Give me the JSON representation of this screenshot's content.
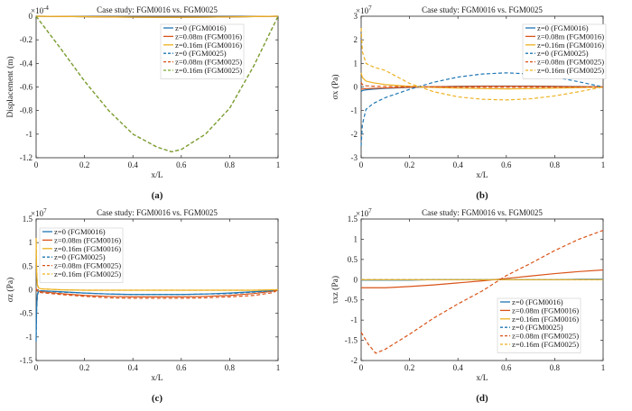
{
  "figure": {
    "panels": [
      {
        "id": "a",
        "label": "(a)",
        "title": "Case study: FGM0016 vs. FGM0025",
        "xlabel": "x/L",
        "ylabel": "Displacement (m)",
        "exponent": "×10",
        "exponent_power": "-4"
      },
      {
        "id": "b",
        "label": "(b)",
        "title": "Case study: FGM0016 vs. FGM0025",
        "xlabel": "x/L",
        "ylabel": "σx (Pa)",
        "exponent": "×10",
        "exponent_power": "7"
      },
      {
        "id": "c",
        "label": "(c)",
        "title": "Case study: FGM0016 vs. FGM0025",
        "xlabel": "x/L",
        "ylabel": "σz (Pa)",
        "exponent": "×10",
        "exponent_power": "7"
      },
      {
        "id": "d",
        "label": "(d)",
        "title": "Case study: FGM0016 vs. FGM0025",
        "xlabel": "x/L",
        "ylabel": "τxz (Pa)",
        "exponent": "×10",
        "exponent_power": "7"
      }
    ]
  },
  "chart_data": [
    {
      "type": "line",
      "title": "Case study: FGM0016 vs. FGM0025",
      "xlabel": "x/L",
      "ylabel": "Displacement (m)",
      "y_scale_factor": "1e-4",
      "xlim": [
        0,
        1
      ],
      "ylim": [
        -1.2,
        0
      ],
      "xticks": [
        "0",
        "0.2",
        "0.4",
        "0.6",
        "0.8",
        "1"
      ],
      "yticks": [
        "0",
        "-0.2",
        "-0.4",
        "-0.6",
        "-0.8",
        "-1",
        "-1.2"
      ],
      "legend": "top-right",
      "x": [
        0,
        0.1,
        0.2,
        0.3,
        0.4,
        0.5,
        0.56,
        0.6,
        0.7,
        0.8,
        0.9,
        1.0
      ],
      "series": [
        {
          "name": "z=0 (FGM0016)",
          "values": [
            0,
            -0.002,
            -0.004,
            -0.006,
            -0.008,
            -0.009,
            -0.009,
            -0.009,
            -0.008,
            -0.006,
            -0.003,
            0
          ],
          "color": "#1f77b4",
          "dash": "solid"
        },
        {
          "name": "z=0.08m (FGM0016)",
          "values": [
            0,
            -0.002,
            -0.004,
            -0.006,
            -0.008,
            -0.009,
            -0.009,
            -0.009,
            -0.008,
            -0.006,
            -0.003,
            0
          ],
          "color": "#d95319",
          "dash": "solid"
        },
        {
          "name": "z=0.16m (FGM0016)",
          "values": [
            0,
            -0.002,
            -0.004,
            -0.006,
            -0.008,
            -0.009,
            -0.009,
            -0.009,
            -0.008,
            -0.006,
            -0.003,
            0
          ],
          "color": "#edb120",
          "dash": "solid"
        },
        {
          "name": "z=0 (FGM0025)",
          "values": [
            0,
            -0.27,
            -0.55,
            -0.8,
            -1.0,
            -1.11,
            -1.15,
            -1.13,
            -1.0,
            -0.78,
            -0.42,
            0
          ],
          "color": "#1f77b4",
          "dash": "dashed"
        },
        {
          "name": "z=0.08m (FGM0025)",
          "values": [
            0,
            -0.27,
            -0.55,
            -0.8,
            -1.0,
            -1.11,
            -1.15,
            -1.13,
            -1.0,
            -0.78,
            -0.42,
            0
          ],
          "color": "#d95319",
          "dash": "dashed"
        },
        {
          "name": "z=0.16m (FGM0025)",
          "values": [
            0,
            -0.27,
            -0.55,
            -0.8,
            -1.0,
            -1.11,
            -1.15,
            -1.13,
            -1.0,
            -0.78,
            -0.42,
            0
          ],
          "color": "#77ac30",
          "dash": "dashed"
        }
      ]
    },
    {
      "type": "line",
      "title": "Case study: FGM0016 vs. FGM0025",
      "xlabel": "x/L",
      "ylabel": "σx (Pa)",
      "y_scale_factor": "1e7",
      "xlim": [
        0,
        1
      ],
      "ylim": [
        -3,
        3
      ],
      "xticks": [
        "0",
        "0.2",
        "0.4",
        "0.6",
        "0.8",
        "1"
      ],
      "yticks": [
        "3",
        "2",
        "1",
        "0",
        "-1",
        "-2",
        "-3"
      ],
      "legend": "top-right",
      "x": [
        0,
        0.005,
        0.02,
        0.05,
        0.1,
        0.2,
        0.3,
        0.4,
        0.5,
        0.6,
        0.7,
        0.8,
        0.9,
        1.0
      ],
      "series": [
        {
          "name": "z=0 (FGM0016)",
          "values": [
            -0.2,
            -0.15,
            -0.12,
            -0.09,
            -0.06,
            -0.02,
            0.01,
            0.03,
            0.04,
            0.04,
            0.04,
            0.03,
            0.02,
            0
          ],
          "color": "#1f77b4",
          "dash": "solid"
        },
        {
          "name": "z=0.08m (FGM0016)",
          "values": [
            -0.1,
            -0.08,
            -0.07,
            -0.06,
            -0.04,
            -0.01,
            0.01,
            0.02,
            0.03,
            0.03,
            0.03,
            0.02,
            0.01,
            0
          ],
          "color": "#d95319",
          "dash": "solid"
        },
        {
          "name": "z=0.16m (FGM0016)",
          "values": [
            0.6,
            0.4,
            0.25,
            0.18,
            0.1,
            0.03,
            -0.02,
            -0.05,
            -0.07,
            -0.08,
            -0.07,
            -0.05,
            -0.03,
            0
          ],
          "color": "#edb120",
          "dash": "solid"
        },
        {
          "name": "z=0 (FGM0025)",
          "values": [
            -2.5,
            -1.6,
            -0.95,
            -0.7,
            -0.45,
            -0.1,
            0.2,
            0.42,
            0.55,
            0.6,
            0.55,
            0.42,
            0.22,
            0
          ],
          "color": "#1f77b4",
          "dash": "dashed"
        },
        {
          "name": "z=0.08m (FGM0025)",
          "values": [
            0.2,
            0.1,
            0.05,
            0.03,
            0.02,
            0.01,
            0.0,
            -0.01,
            -0.01,
            -0.01,
            -0.01,
            -0.01,
            0,
            0
          ],
          "color": "#d95319",
          "dash": "dashed"
        },
        {
          "name": "z=0.16m (FGM0025)",
          "values": [
            2.5,
            1.5,
            1.0,
            0.85,
            0.7,
            0.15,
            -0.2,
            -0.42,
            -0.52,
            -0.55,
            -0.5,
            -0.38,
            -0.2,
            0
          ],
          "color": "#edb120",
          "dash": "dashed"
        }
      ]
    },
    {
      "type": "line",
      "title": "Case study: FGM0016 vs. FGM0025",
      "xlabel": "x/L",
      "ylabel": "σz (Pa)",
      "y_scale_factor": "1e7",
      "xlim": [
        0,
        1
      ],
      "ylim": [
        -1.5,
        1.5
      ],
      "xticks": [
        "0",
        "0.2",
        "0.4",
        "0.6",
        "0.8",
        "1"
      ],
      "yticks": [
        "1.5",
        "1",
        "0.5",
        "0",
        "-0.5",
        "-1",
        "-1.5"
      ],
      "legend": "top-left",
      "x": [
        0,
        0.002,
        0.005,
        0.01,
        0.02,
        0.1,
        0.2,
        0.3,
        0.4,
        0.5,
        0.6,
        0.7,
        0.8,
        0.9,
        0.98,
        1.0
      ],
      "series": [
        {
          "name": "z=0 (FGM0016)",
          "values": [
            -1.05,
            -0.4,
            -0.1,
            -0.03,
            -0.02,
            -0.04,
            -0.07,
            -0.09,
            -0.1,
            -0.1,
            -0.1,
            -0.09,
            -0.07,
            -0.04,
            -0.02,
            0
          ],
          "color": "#1f77b4",
          "dash": "solid"
        },
        {
          "name": "z=0.08m (FGM0016)",
          "values": [
            0.02,
            0.0,
            -0.02,
            -0.03,
            -0.04,
            -0.08,
            -0.12,
            -0.14,
            -0.15,
            -0.15,
            -0.15,
            -0.14,
            -0.12,
            -0.08,
            -0.03,
            0
          ],
          "color": "#d95319",
          "dash": "solid"
        },
        {
          "name": "z=0.16m (FGM0016)",
          "values": [
            1.05,
            0.4,
            0.1,
            0.04,
            0.02,
            0.0,
            -0.01,
            -0.01,
            -0.01,
            -0.01,
            -0.01,
            -0.01,
            -0.01,
            -0.01,
            0,
            0
          ],
          "color": "#edb120",
          "dash": "solid"
        },
        {
          "name": "z=0 (FGM0025)",
          "values": [
            -1.1,
            -0.45,
            -0.12,
            -0.04,
            -0.02,
            -0.05,
            -0.07,
            -0.09,
            -0.1,
            -0.1,
            -0.1,
            -0.09,
            -0.08,
            -0.05,
            -0.02,
            0
          ],
          "color": "#1f77b4",
          "dash": "dashed"
        },
        {
          "name": "z=0.08m (FGM0025)",
          "values": [
            0.03,
            0.0,
            -0.03,
            -0.05,
            -0.06,
            -0.1,
            -0.14,
            -0.17,
            -0.18,
            -0.18,
            -0.18,
            -0.17,
            -0.15,
            -0.12,
            -0.06,
            0
          ],
          "color": "#d95319",
          "dash": "dashed"
        },
        {
          "name": "z=0.16m (FGM0025)",
          "values": [
            1.1,
            0.45,
            0.12,
            0.04,
            0.02,
            0.0,
            -0.01,
            -0.01,
            -0.01,
            -0.01,
            -0.01,
            -0.01,
            -0.01,
            -0.01,
            0,
            0
          ],
          "color": "#edb120",
          "dash": "dashed"
        }
      ]
    },
    {
      "type": "line",
      "title": "Case study: FGM0016 vs. FGM0025",
      "xlabel": "x/L",
      "ylabel": "τxz (Pa)",
      "y_scale_factor": "1e7",
      "xlim": [
        0,
        1
      ],
      "ylim": [
        -2,
        1.5
      ],
      "xticks": [
        "0",
        "0.2",
        "0.4",
        "0.6",
        "0.8",
        "1"
      ],
      "yticks": [
        "1.5",
        "1",
        "0.5",
        "0",
        "-0.5",
        "-1",
        "-1.5",
        "-2"
      ],
      "legend": "bottom-right",
      "x": [
        0,
        0.03,
        0.06,
        0.1,
        0.2,
        0.3,
        0.4,
        0.5,
        0.6,
        0.7,
        0.8,
        0.9,
        1.0
      ],
      "series": [
        {
          "name": "z=0 (FGM0016)",
          "values": [
            -0.01,
            -0.01,
            -0.01,
            -0.01,
            -0.01,
            0,
            0,
            0,
            0,
            0,
            0,
            0.01,
            0.01
          ],
          "color": "#1f77b4",
          "dash": "solid"
        },
        {
          "name": "z=0.08m (FGM0016)",
          "values": [
            -0.2,
            -0.2,
            -0.2,
            -0.2,
            -0.17,
            -0.13,
            -0.08,
            -0.03,
            0.03,
            0.09,
            0.15,
            0.2,
            0.24
          ],
          "color": "#d95319",
          "dash": "solid"
        },
        {
          "name": "z=0.16m (FGM0016)",
          "values": [
            0,
            0,
            0,
            0,
            0,
            0,
            0,
            0,
            0,
            0,
            0,
            0,
            0
          ],
          "color": "#edb120",
          "dash": "solid"
        },
        {
          "name": "z=0 (FGM0025)",
          "values": [
            0,
            0,
            0,
            0,
            0,
            0,
            0,
            0,
            0,
            0,
            0,
            0,
            0
          ],
          "color": "#1f77b4",
          "dash": "dashed"
        },
        {
          "name": "z=0.08m (FGM0025)",
          "values": [
            -1.3,
            -1.6,
            -1.82,
            -1.72,
            -1.35,
            -0.95,
            -0.6,
            -0.28,
            0.1,
            0.4,
            0.72,
            1.0,
            1.22
          ],
          "color": "#d95319",
          "dash": "dashed"
        },
        {
          "name": "z=0.16m (FGM0025)",
          "values": [
            0,
            0,
            0,
            0,
            0,
            0,
            0,
            0,
            0,
            0,
            0,
            0,
            0
          ],
          "color": "#edb120",
          "dash": "dashed"
        }
      ]
    }
  ]
}
